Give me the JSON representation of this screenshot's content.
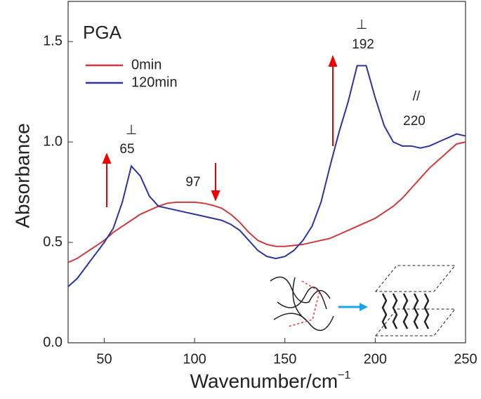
{
  "chart_data": {
    "type": "line",
    "title": "PGA",
    "x_label": "Wavenumber/cm",
    "x_label_sup": "−1",
    "y_label": "Absorbance",
    "x": [
      30,
      35,
      40,
      45,
      50,
      55,
      60,
      65,
      70,
      75,
      80,
      85,
      90,
      95,
      100,
      105,
      110,
      115,
      120,
      125,
      130,
      135,
      140,
      145,
      150,
      155,
      160,
      165,
      170,
      175,
      180,
      185,
      190,
      195,
      200,
      205,
      210,
      215,
      220,
      225,
      230,
      235,
      240,
      245,
      250
    ],
    "series": [
      {
        "name": "0min",
        "color": "#d0393e",
        "values": [
          0.4,
          0.42,
          0.45,
          0.48,
          0.51,
          0.55,
          0.58,
          0.61,
          0.64,
          0.66,
          0.68,
          0.695,
          0.7,
          0.7,
          0.7,
          0.695,
          0.685,
          0.67,
          0.64,
          0.6,
          0.55,
          0.51,
          0.49,
          0.48,
          0.48,
          0.485,
          0.49,
          0.5,
          0.51,
          0.52,
          0.54,
          0.56,
          0.58,
          0.6,
          0.62,
          0.65,
          0.68,
          0.72,
          0.77,
          0.82,
          0.87,
          0.91,
          0.95,
          0.99,
          1.0
        ]
      },
      {
        "name": "120min",
        "color": "#2d33a0",
        "values": [
          0.28,
          0.32,
          0.38,
          0.44,
          0.5,
          0.57,
          0.7,
          0.88,
          0.83,
          0.73,
          0.68,
          0.67,
          0.66,
          0.65,
          0.64,
          0.63,
          0.62,
          0.61,
          0.59,
          0.56,
          0.51,
          0.46,
          0.43,
          0.42,
          0.43,
          0.46,
          0.51,
          0.58,
          0.7,
          0.88,
          1.05,
          1.2,
          1.38,
          1.38,
          1.22,
          1.08,
          1.0,
          0.98,
          0.98,
          0.97,
          0.98,
          1.0,
          1.02,
          1.04,
          1.03
        ]
      }
    ],
    "xlim": [
      30,
      250
    ],
    "xticks": [
      50,
      100,
      150,
      200,
      250
    ],
    "ylim": [
      0,
      1.7
    ],
    "yticks": [
      {
        "value": 0,
        "label": "0.0"
      },
      0.5,
      {
        "value": 1,
        "label": "1.0"
      },
      1.5
    ],
    "annotations": [
      "⊥",
      "192",
      "⊥",
      "65",
      "97",
      "//",
      "220"
    ]
  }
}
